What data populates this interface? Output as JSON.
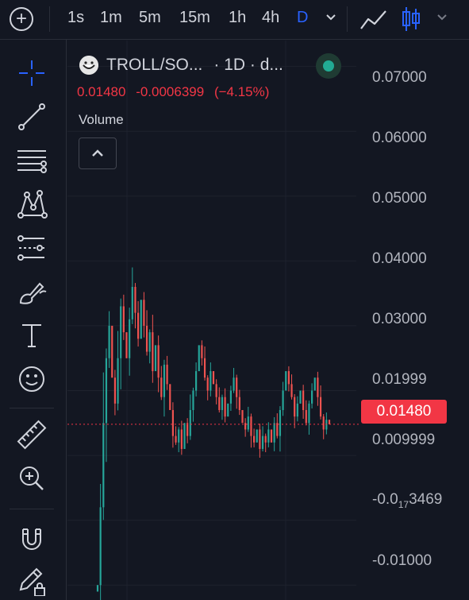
{
  "toolbar": {
    "intervals": [
      "1s",
      "1m",
      "5m",
      "15m",
      "1h",
      "4h",
      "D"
    ],
    "active_interval": "D"
  },
  "legend": {
    "symbol": "TROLL/SO...",
    "timeframe": "· 1D · d...",
    "last_price": "0.01480",
    "change": "-0.0006399",
    "change_pct": "(−4.15%)",
    "indicator": "Volume"
  },
  "price_axis": {
    "labels": [
      "0.07000",
      "0.06000",
      "0.05000",
      "0.04000",
      "0.03000",
      "0.01999",
      "0.009999",
      "-0.01000"
    ],
    "special_label": {
      "prefix": "-0.0",
      "sub": "17",
      "suffix": "3469"
    },
    "current_price_tag": "0.01480"
  },
  "colors": {
    "background": "#131722",
    "up": "#26a69a",
    "down": "#ef5350",
    "price_tag": "#f23645",
    "active": "#2962ff",
    "status": "#22ab94"
  },
  "chart_data": {
    "type": "candlestick",
    "ylim": [
      -0.0123,
      0.074
    ],
    "current_price": 0.0148,
    "close": [
      -0.01,
      0.002,
      0.015,
      0.025,
      0.03,
      0.022,
      0.018,
      0.025,
      0.033,
      0.029,
      0.025,
      0.031,
      0.036,
      0.032,
      0.028,
      0.034,
      0.03,
      0.026,
      0.029,
      0.023,
      0.027,
      0.022,
      0.019,
      0.024,
      0.021,
      0.017,
      0.013,
      0.012,
      0.014,
      0.011,
      0.015,
      0.013,
      0.017,
      0.02,
      0.023,
      0.027,
      0.025,
      0.022,
      0.02,
      0.023,
      0.021,
      0.019,
      0.017,
      0.019,
      0.016,
      0.018,
      0.02,
      0.022,
      0.019,
      0.017,
      0.015,
      0.014,
      0.016,
      0.013,
      0.012,
      0.014,
      0.011,
      0.013,
      0.012,
      0.014,
      0.012,
      0.015,
      0.013,
      0.017,
      0.02,
      0.023,
      0.021,
      0.019,
      0.016,
      0.018,
      0.02,
      0.017,
      0.015,
      0.018,
      0.02,
      0.022,
      0.019,
      0.016,
      0.014,
      0.0155,
      0.0148
    ]
  }
}
